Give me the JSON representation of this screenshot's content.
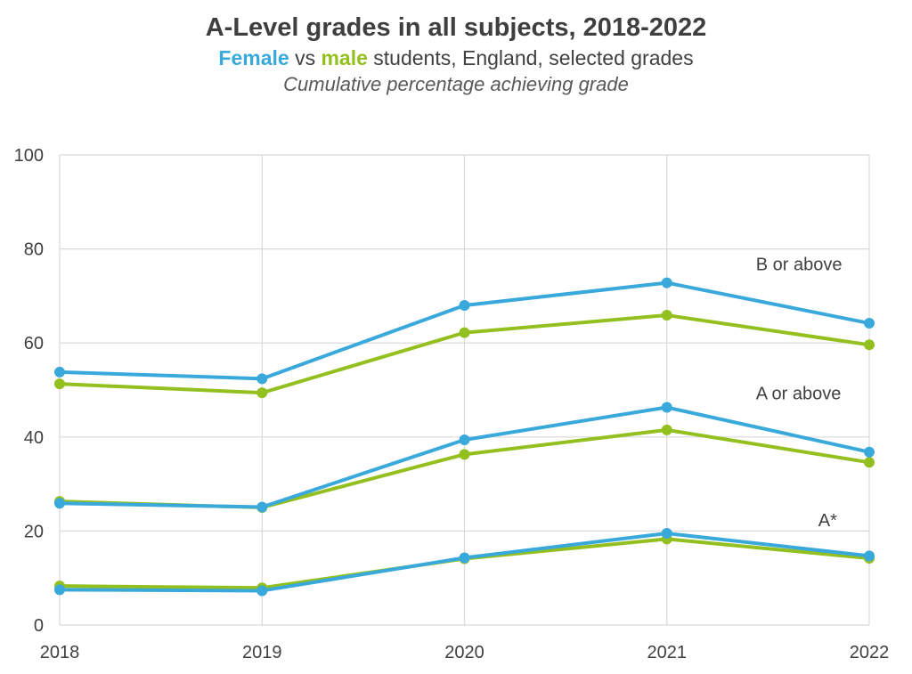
{
  "header": {
    "title": "A-Level grades in all subjects, 2018-2022",
    "subtitle_female": "Female",
    "subtitle_vs": "vs",
    "subtitle_male": "male",
    "subtitle_rest": "students, England, selected grades",
    "note": "Cumulative percentage achieving grade"
  },
  "colors": {
    "female": "#39a9dc",
    "male": "#93c01f",
    "grid": "#d9d9d9",
    "axis_text": "#404040"
  },
  "chart_data": {
    "type": "line",
    "x": [
      "2018",
      "2019",
      "2020",
      "2021",
      "2022"
    ],
    "ylim": [
      0,
      100
    ],
    "yticks": [
      0,
      20,
      40,
      60,
      80,
      100
    ],
    "grid": true,
    "groups": [
      {
        "label": "B or above",
        "label_x": "2021",
        "label_y": 75.5,
        "female": [
          53.8,
          52.4,
          68.0,
          72.8,
          64.2
        ],
        "male": [
          51.3,
          49.4,
          62.2,
          65.9,
          59.6
        ]
      },
      {
        "label": "A or above",
        "label_x": "2021",
        "label_y": 48.0,
        "female": [
          25.9,
          25.1,
          39.4,
          46.3,
          36.8
        ],
        "male": [
          26.3,
          25.0,
          36.3,
          41.5,
          34.6
        ]
      },
      {
        "label": "A*",
        "label_x": "2021",
        "label_y": 21.0,
        "female": [
          7.5,
          7.3,
          14.3,
          19.5,
          14.7
        ],
        "male": [
          8.3,
          7.9,
          14.1,
          18.3,
          14.2
        ]
      }
    ]
  }
}
